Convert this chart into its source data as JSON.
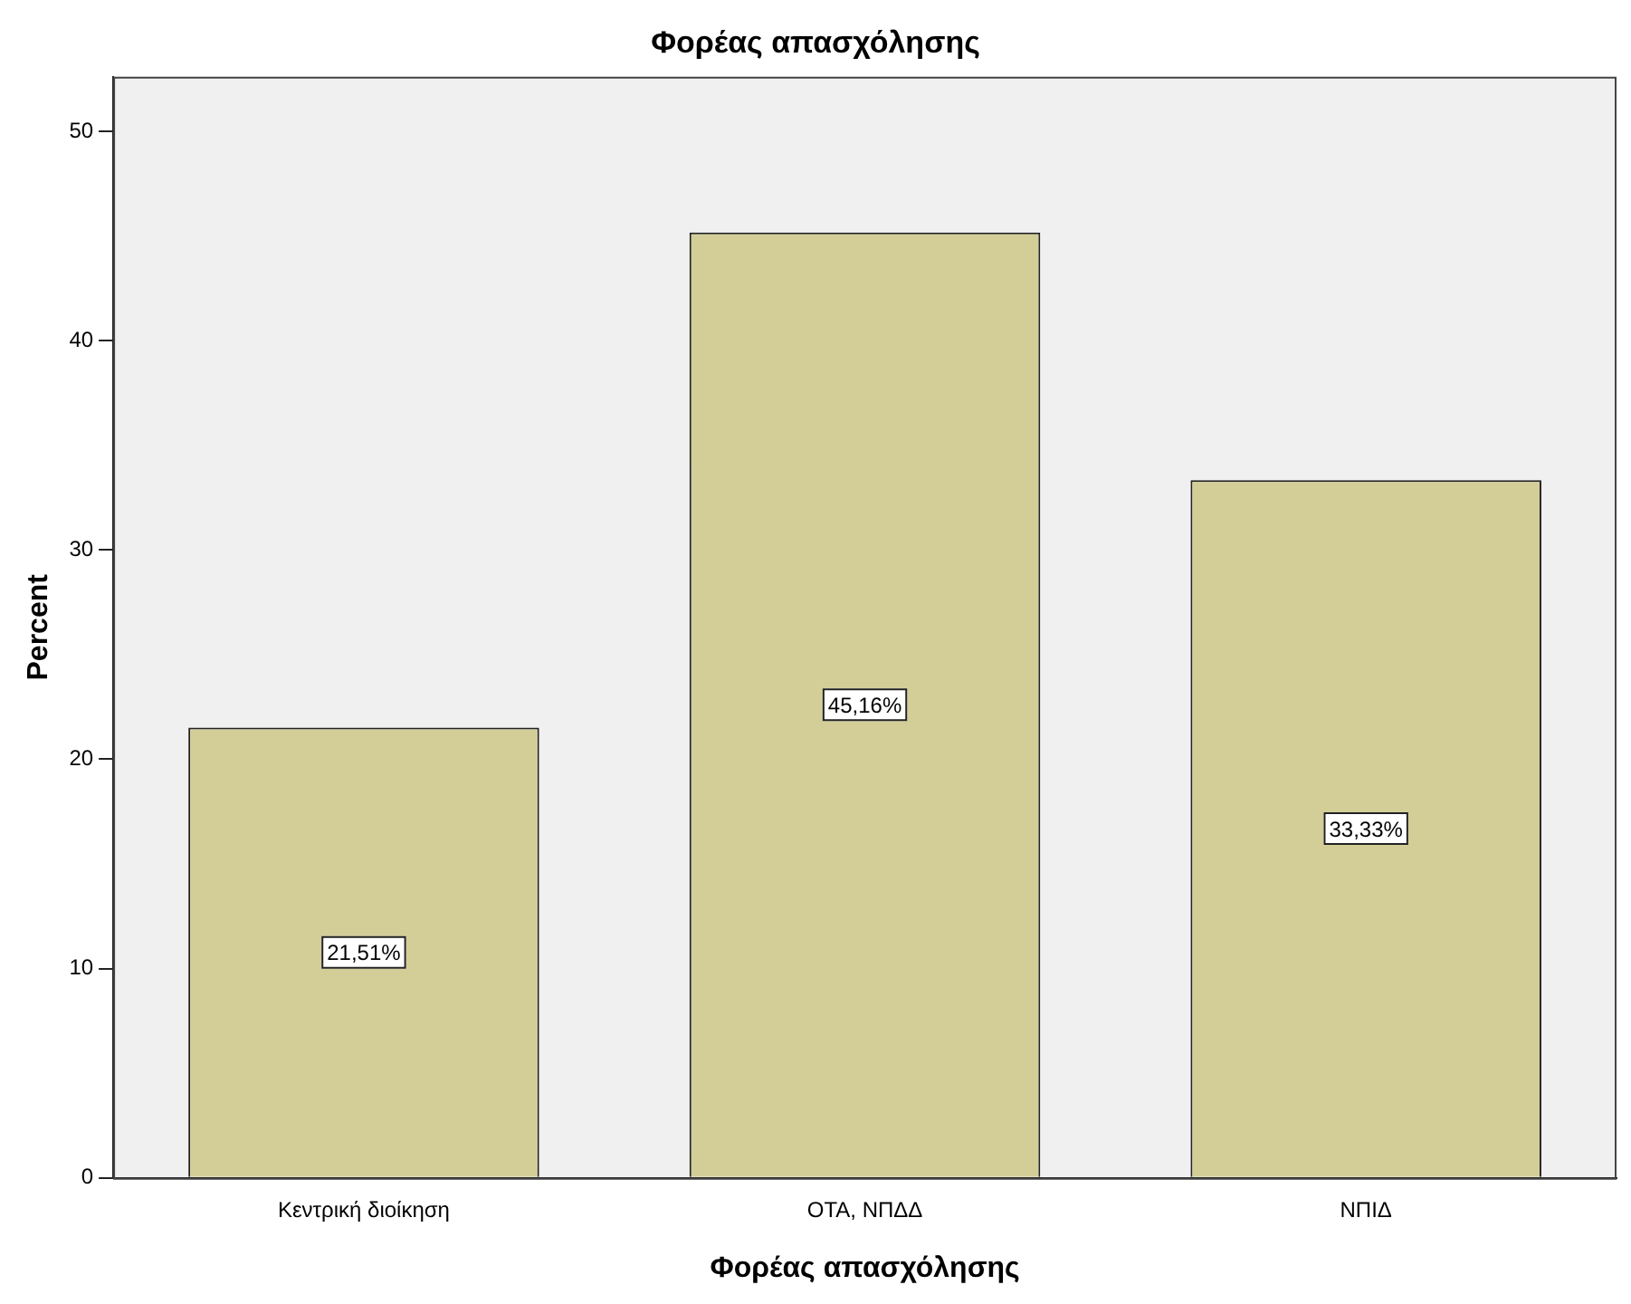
{
  "chart_data": {
    "type": "bar",
    "title": "Φορέας απασχόλησης",
    "xlabel": "Φορέας απασχόλησης",
    "ylabel": "Percent",
    "categories": [
      "Κεντρική διοίκηση",
      "ΟΤΑ, ΝΠΔΔ",
      "ΝΠΙΔ"
    ],
    "values": [
      21.51,
      45.16,
      33.33
    ],
    "value_labels": [
      "21,51%",
      "45,16%",
      "33,33%"
    ],
    "color": "#d3ce97",
    "ylim": [
      0,
      52.6
    ],
    "yticks": [
      0,
      10,
      20,
      30,
      40,
      50
    ],
    "grid": false,
    "legend": false
  }
}
